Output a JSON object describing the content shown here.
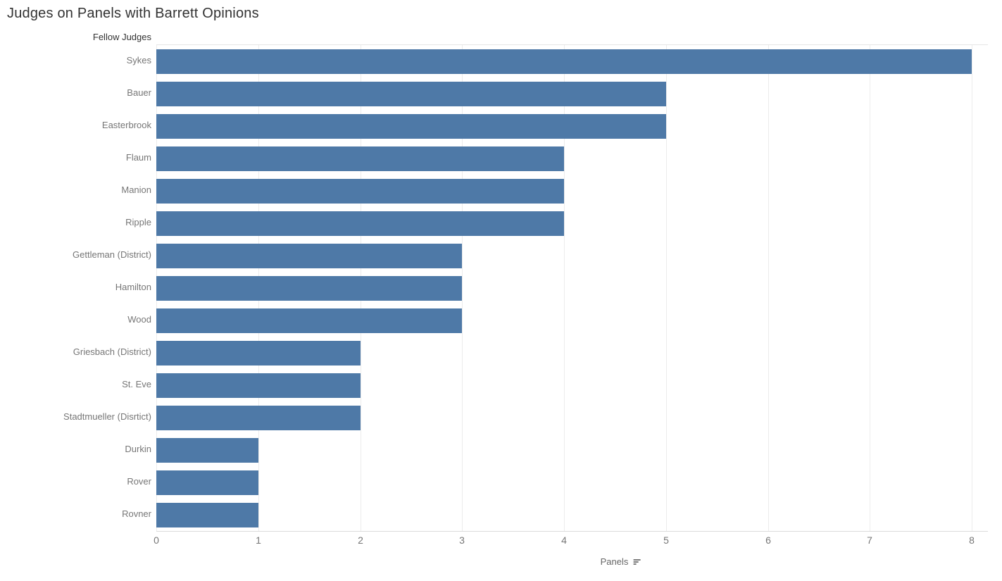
{
  "title": "Judges on Panels with Barrett Opinions",
  "y_axis_header": "Fellow Judges",
  "x_axis": {
    "label": "Panels",
    "ticks": [
      0,
      1,
      2,
      3,
      4,
      5,
      6,
      7,
      8
    ],
    "sort_icon": "sort-descending-icon"
  },
  "colors": {
    "bar": "#4e79a7",
    "gridline": "#ececec",
    "axis_line": "#dcdcdc",
    "title_text": "#333333",
    "header_text": "#333333",
    "label_text": "#767676",
    "tick_text": "#767676"
  },
  "chart_data": {
    "type": "bar",
    "orientation": "horizontal",
    "title": "Judges on Panels with Barrett Opinions",
    "xlabel": "Panels",
    "ylabel": "Fellow Judges",
    "xlim": [
      0,
      8
    ],
    "x_ticks": [
      0,
      1,
      2,
      3,
      4,
      5,
      6,
      7,
      8
    ],
    "grid": "vertical",
    "legend": "none",
    "sort": "descending",
    "categories": [
      "Sykes",
      "Bauer",
      "Easterbrook",
      "Flaum",
      "Manion",
      "Ripple",
      "Gettleman (District)",
      "Hamilton",
      "Wood",
      "Griesbach (District)",
      "St. Eve",
      "Stadtmueller (Disrtict)",
      "Durkin",
      "Rover",
      "Rovner"
    ],
    "values": [
      8,
      5,
      5,
      4,
      4,
      4,
      3,
      3,
      3,
      2,
      2,
      2,
      1,
      1,
      1
    ]
  }
}
